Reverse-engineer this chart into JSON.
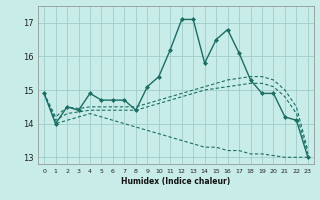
{
  "background_color": "#c8ece8",
  "grid_color": "#a0cccc",
  "line_color": "#1a6e64",
  "xlabel": "Humidex (Indice chaleur)",
  "ylim": [
    12.8,
    17.5
  ],
  "xlim": [
    -0.5,
    23.5
  ],
  "yticks": [
    13,
    14,
    15,
    16,
    17
  ],
  "xticks": [
    0,
    1,
    2,
    3,
    4,
    5,
    6,
    7,
    8,
    9,
    10,
    11,
    12,
    13,
    14,
    15,
    16,
    17,
    18,
    19,
    20,
    21,
    22,
    23
  ],
  "series1_x": [
    0,
    1,
    2,
    3,
    4,
    5,
    6,
    7,
    8,
    9,
    10,
    11,
    12,
    13,
    14,
    15,
    16,
    17,
    18,
    19,
    20,
    21,
    22,
    23
  ],
  "series1_y": [
    14.9,
    14.0,
    14.5,
    14.4,
    14.9,
    14.7,
    14.7,
    14.7,
    14.4,
    15.1,
    15.4,
    16.2,
    17.1,
    17.1,
    15.8,
    16.5,
    16.8,
    16.1,
    15.3,
    14.9,
    14.9,
    14.2,
    14.1,
    13.0
  ],
  "series2_x": [
    0,
    1,
    2,
    3,
    4,
    5,
    6,
    7,
    8,
    9,
    10,
    11,
    12,
    13,
    14,
    15,
    16,
    17,
    18,
    19,
    20,
    21,
    22,
    23
  ],
  "series2_y": [
    14.9,
    14.2,
    14.5,
    14.45,
    14.5,
    14.5,
    14.5,
    14.5,
    14.5,
    14.6,
    14.7,
    14.8,
    14.9,
    15.0,
    15.1,
    15.2,
    15.3,
    15.35,
    15.4,
    15.4,
    15.3,
    15.0,
    14.5,
    13.2
  ],
  "series3_x": [
    0,
    1,
    2,
    3,
    4,
    5,
    6,
    7,
    8,
    9,
    10,
    11,
    12,
    13,
    14,
    15,
    16,
    17,
    18,
    19,
    20,
    21,
    22,
    23
  ],
  "series3_y": [
    14.9,
    14.1,
    14.3,
    14.35,
    14.4,
    14.4,
    14.4,
    14.4,
    14.4,
    14.5,
    14.6,
    14.7,
    14.8,
    14.9,
    15.0,
    15.05,
    15.1,
    15.15,
    15.2,
    15.2,
    15.1,
    14.8,
    14.3,
    13.1
  ],
  "series4_x": [
    0,
    1,
    2,
    3,
    4,
    5,
    6,
    7,
    8,
    9,
    10,
    11,
    12,
    13,
    14,
    15,
    16,
    17,
    18,
    19,
    20,
    21,
    22,
    23
  ],
  "series4_y": [
    14.9,
    14.0,
    14.1,
    14.2,
    14.3,
    14.2,
    14.1,
    14.0,
    13.9,
    13.8,
    13.7,
    13.6,
    13.5,
    13.4,
    13.3,
    13.3,
    13.2,
    13.2,
    13.1,
    13.1,
    13.05,
    13.0,
    13.0,
    13.0
  ]
}
